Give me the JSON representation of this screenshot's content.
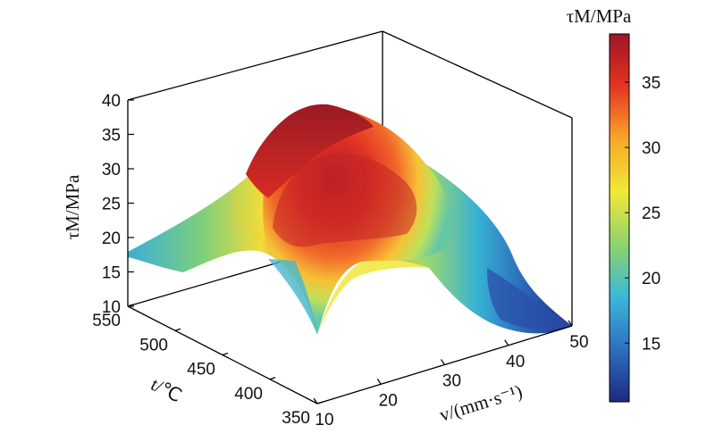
{
  "chart_data": {
    "type": "surface3d",
    "axes": {
      "x": {
        "label": "v/(mm·s⁻¹)",
        "ticks": [
          "10",
          "20",
          "30",
          "40",
          "50"
        ],
        "range": [
          10,
          50
        ]
      },
      "y": {
        "label": "t/℃",
        "ticks": [
          "350",
          "400",
          "450",
          "500",
          "550"
        ],
        "range": [
          350,
          550
        ]
      },
      "z": {
        "label": "τM/MPa",
        "ticks": [
          "10",
          "15",
          "20",
          "25",
          "30",
          "35",
          "40"
        ],
        "range": [
          10,
          40
        ]
      }
    },
    "colorbar": {
      "label": "τM/MPa",
      "ticks": [
        "15",
        "20",
        "25",
        "30",
        "35"
      ],
      "range": [
        10.5,
        38.7
      ],
      "colors": [
        "#1d2a80",
        "#2d6fc0",
        "#3bb8d8",
        "#8fd36b",
        "#f2e935",
        "#f7a72b",
        "#e63322",
        "#9d1624"
      ]
    },
    "surface_profile": {
      "v_front_edge": [
        10,
        20,
        30,
        40,
        50
      ],
      "tau_front_edge": [
        17.0,
        17.5,
        15.5,
        13.0,
        10.5
      ],
      "peak": {
        "v": 20,
        "t": 450,
        "tau": 38.5
      }
    }
  }
}
